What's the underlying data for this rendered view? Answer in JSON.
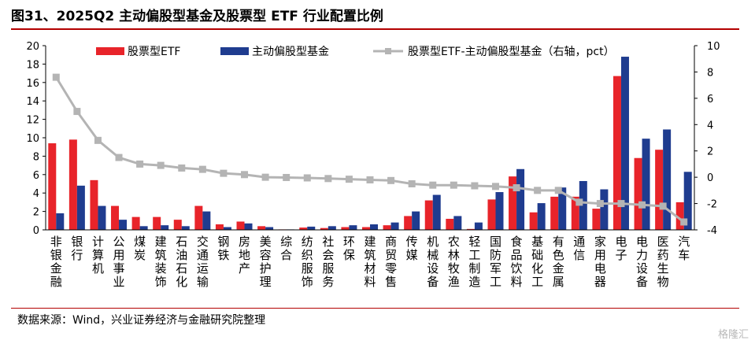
{
  "header": {
    "title": "图31、2025Q2 主动偏股型基金及股票型 ETF 行业配置比例"
  },
  "footer": {
    "source": "数据来源：Wind，兴业证券经济与金融研究院整理",
    "watermark": "格隆汇"
  },
  "colors": {
    "etf": "#e8242a",
    "active": "#1f3c8f",
    "diff": "#b4b4b4"
  },
  "chart_data": {
    "type": "bar",
    "title": "",
    "xlabel": "",
    "ylabel": "",
    "ylim": [
      0,
      20
    ],
    "y2lim": [
      -4,
      10
    ],
    "yticks": [
      0,
      2,
      4,
      6,
      8,
      10,
      12,
      14,
      16,
      18,
      20
    ],
    "y2ticks": [
      -4,
      -2,
      0,
      2,
      4,
      6,
      8,
      10
    ],
    "legend_position": "top",
    "grid": false,
    "categories": [
      "非银金融",
      "银行",
      "计算机",
      "公用事业",
      "煤炭",
      "建筑装饰",
      "石油石化",
      "交通运输",
      "钢铁",
      "房地产",
      "美容护理",
      "综合",
      "纺织服饰",
      "社会服务",
      "环保",
      "建筑材料",
      "商贸零售",
      "传媒",
      "机械设备",
      "农林牧渔",
      "轻工制造",
      "国防军工",
      "食品饮料",
      "基础化工",
      "有色金属",
      "通信",
      "家用电器",
      "电子",
      "电力设备",
      "医药生物",
      "汽车"
    ],
    "series": [
      {
        "name": "股票型ETF",
        "type": "bar",
        "axis": "left",
        "values": [
          9.4,
          9.8,
          5.4,
          2.6,
          1.4,
          1.4,
          1.1,
          2.6,
          0.6,
          0.9,
          0.4,
          0.05,
          0.25,
          0.2,
          0.3,
          0.3,
          0.5,
          1.5,
          3.2,
          1.2,
          0.1,
          3.3,
          5.8,
          1.9,
          3.6,
          3.6,
          2.3,
          16.7,
          7.8,
          8.7,
          3.0
        ]
      },
      {
        "name": "主动偏股型基金",
        "type": "bar",
        "axis": "left",
        "values": [
          1.8,
          4.8,
          2.6,
          1.1,
          0.4,
          0.5,
          0.4,
          2.0,
          0.3,
          0.7,
          0.3,
          0.05,
          0.35,
          0.4,
          0.5,
          0.6,
          0.8,
          2.0,
          3.8,
          1.5,
          0.8,
          4.1,
          6.6,
          2.9,
          4.6,
          5.3,
          4.4,
          18.8,
          9.9,
          10.9,
          6.3
        ]
      },
      {
        "name": "股票型ETF-主动偏股型基金（右轴，pct）",
        "type": "line",
        "axis": "right",
        "values": [
          7.6,
          5.0,
          2.8,
          1.5,
          1.0,
          0.9,
          0.7,
          0.6,
          0.3,
          0.2,
          0.0,
          -0.02,
          -0.05,
          -0.1,
          -0.15,
          -0.2,
          -0.25,
          -0.5,
          -0.6,
          -0.6,
          -0.65,
          -0.7,
          -0.8,
          -1.0,
          -1.0,
          -1.9,
          -2.0,
          -2.0,
          -2.1,
          -2.2,
          -3.4
        ]
      }
    ]
  }
}
